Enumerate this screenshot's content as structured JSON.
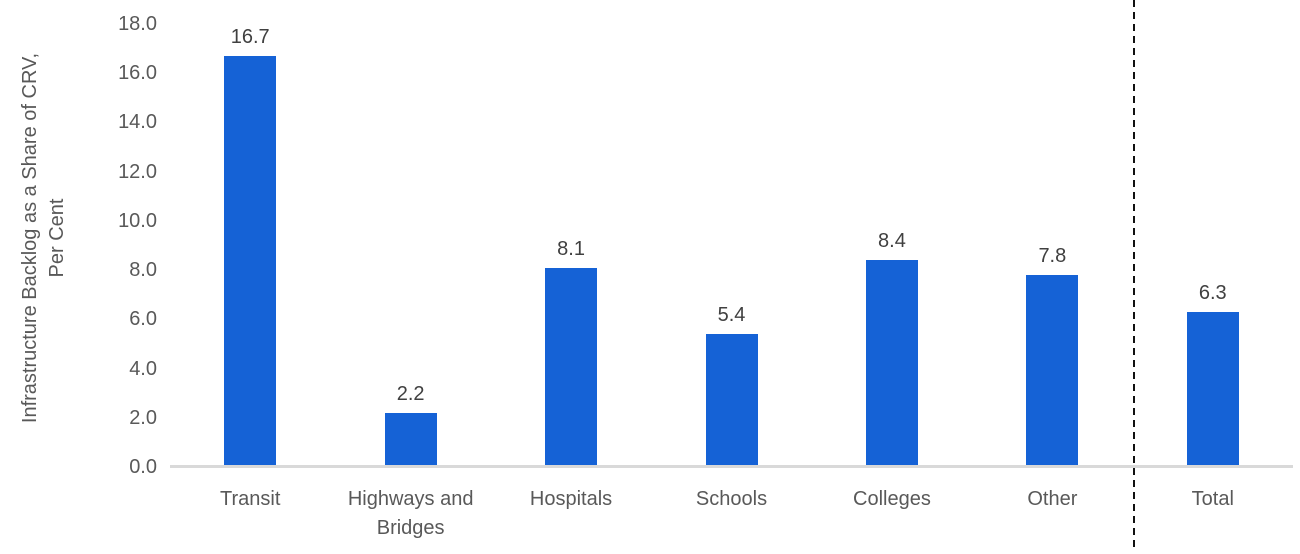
{
  "chart_data": {
    "type": "bar",
    "categories": [
      "Transit",
      "Highways and Bridges",
      "Hospitals",
      "Schools",
      "Colleges",
      "Other",
      "Total"
    ],
    "values": [
      16.7,
      2.2,
      8.1,
      5.4,
      8.4,
      7.8,
      6.3
    ],
    "data_labels": [
      "16.7",
      "2.2",
      "8.1",
      "5.4",
      "8.4",
      "7.8",
      "6.3"
    ],
    "ylabel": "Infrastructure Backlog as a Share of CRV,\nPer Cent",
    "ylim": [
      0,
      18
    ],
    "ytick_labels": [
      "0.0",
      "2.0",
      "4.0",
      "6.0",
      "8.0",
      "10.0",
      "12.0",
      "14.0",
      "16.0",
      "18.0"
    ],
    "grid": false,
    "legend": false,
    "bar_color": "#1562D6",
    "axis_line_color": "#D9D9D9",
    "tick_label_color": "#595959",
    "data_label_color": "#404040",
    "separator": {
      "style": "dashed",
      "color": "#111111",
      "after_category": "Other"
    }
  }
}
